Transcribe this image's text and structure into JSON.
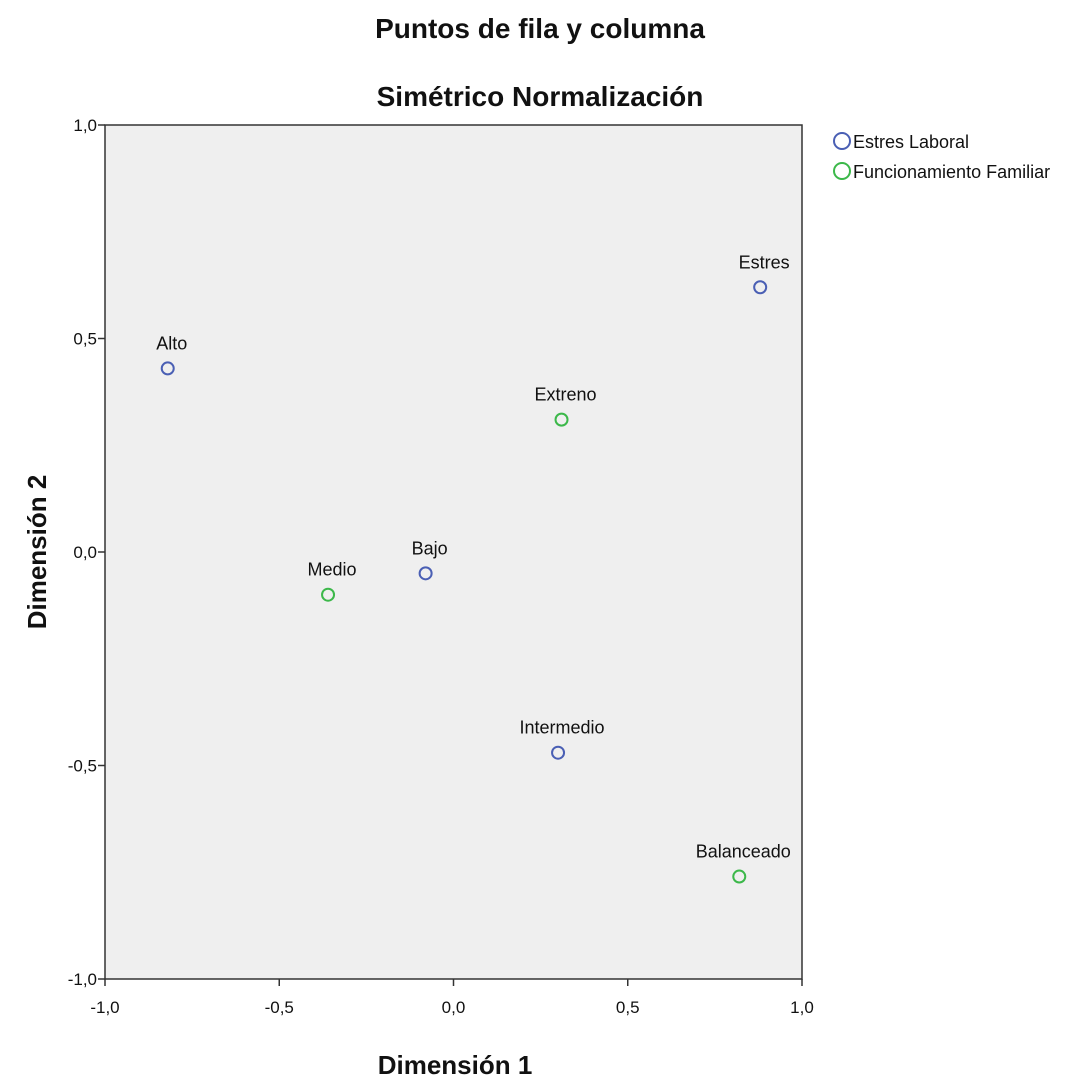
{
  "chart_data": {
    "type": "scatter",
    "title": "Puntos de fila y columna",
    "subtitle": "Simétrico Normalización",
    "xlabel": "Dimensión 1",
    "ylabel": "Dimensión 2",
    "xlim": [
      -1.0,
      1.0
    ],
    "ylim": [
      -1.0,
      1.0
    ],
    "x_ticks": [
      -1.0,
      -0.5,
      0.0,
      0.5,
      1.0
    ],
    "y_ticks": [
      -1.0,
      -0.5,
      0.0,
      0.5,
      1.0
    ],
    "x_tick_labels": [
      "-1,0",
      "-0,5",
      "0,0",
      "0,5",
      "1,0"
    ],
    "y_tick_labels": [
      "-1,0",
      "-0,5",
      "0,0",
      "0,5",
      "1,0"
    ],
    "grid": false,
    "legend_position": "top-right",
    "background_color": "#efefef",
    "series": [
      {
        "name": "Estres Laboral",
        "color": "#4a5fb4",
        "marker": "open-circle",
        "points": [
          {
            "label": "Alto",
            "x": -0.82,
            "y": 0.43
          },
          {
            "label": "Bajo",
            "x": -0.08,
            "y": -0.05
          },
          {
            "label": "Intermedio",
            "x": 0.3,
            "y": -0.47
          },
          {
            "label": "Estres",
            "x": 0.88,
            "y": 0.62
          }
        ]
      },
      {
        "name": "Funcionamiento Familiar",
        "color": "#3cb84a",
        "marker": "open-circle",
        "points": [
          {
            "label": "Medio",
            "x": -0.36,
            "y": -0.1
          },
          {
            "label": "Extreno",
            "x": 0.31,
            "y": 0.31
          },
          {
            "label": "Balanceado",
            "x": 0.82,
            "y": -0.76
          }
        ]
      }
    ]
  }
}
